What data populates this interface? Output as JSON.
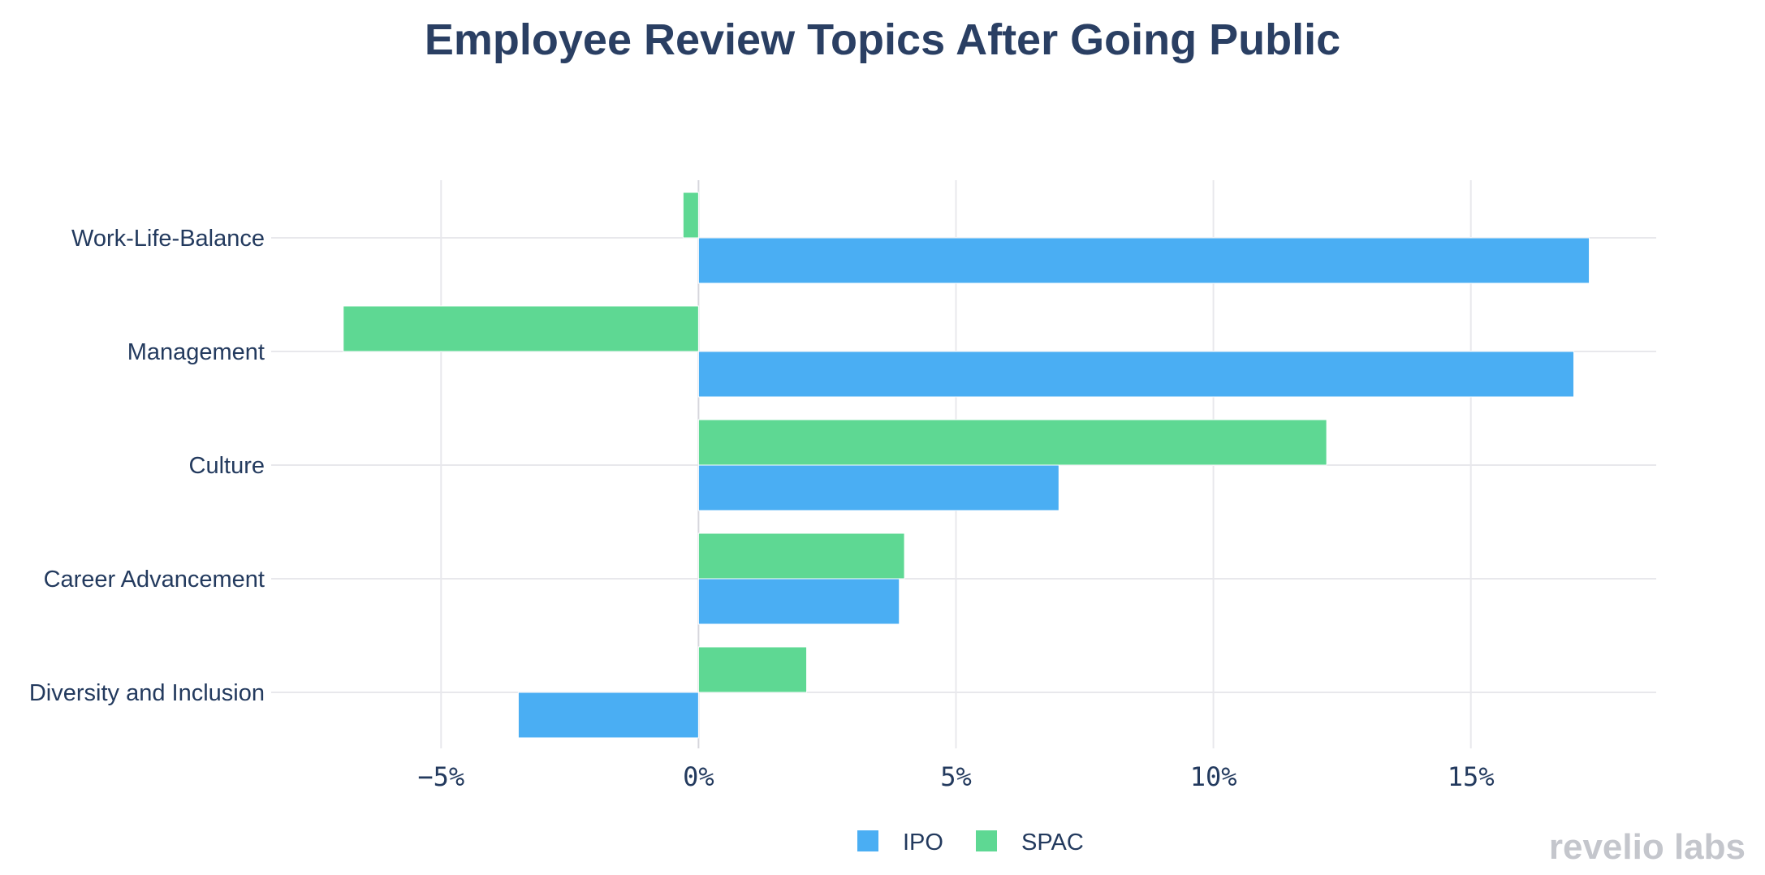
{
  "chart_data": {
    "type": "bar",
    "orientation": "horizontal",
    "title": "Employee Review Topics After Going Public",
    "categories": [
      "Work-Life-Balance",
      "Management",
      "Culture",
      "Career Advancement",
      "Diversity and Inclusion"
    ],
    "series": [
      {
        "name": "IPO",
        "color": "#4aaef3",
        "values": [
          17.3,
          17.0,
          7.0,
          3.9,
          -3.5
        ]
      },
      {
        "name": "SPAC",
        "color": "#5ed893",
        "values": [
          -0.3,
          -6.9,
          12.2,
          4.0,
          2.1
        ]
      }
    ],
    "xlim": [
      -8.3,
      18.6
    ],
    "xticks": [
      -5,
      0,
      5,
      10,
      15
    ],
    "xtick_labels": [
      "−5%",
      "0%",
      "5%",
      "10%",
      "15%"
    ],
    "xlabel": "",
    "ylabel": "",
    "grid": true,
    "legend_position": "bottom-center"
  },
  "watermark": {
    "text": "revelio labs",
    "color": "#c4c6cc"
  }
}
